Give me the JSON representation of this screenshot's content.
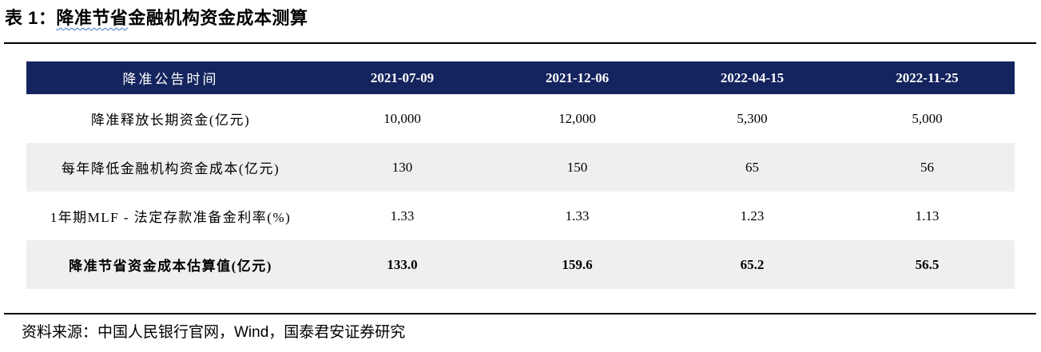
{
  "title": {
    "prefix": "表 1：",
    "underlined": "降准节省",
    "rest": "金融机构资金成本测算"
  },
  "table": {
    "header": [
      "降准公告时间",
      "2021-07-09",
      "2021-12-06",
      "2022-04-15",
      "2022-11-25"
    ],
    "rows": [
      {
        "label": "降准释放长期资金(亿元)",
        "values": [
          "10,000",
          "12,000",
          "5,300",
          "5,000"
        ]
      },
      {
        "label": "每年降低金融机构资金成本(亿元)",
        "values": [
          "130",
          "150",
          "65",
          "56"
        ]
      },
      {
        "label": "1年期MLF - 法定存款准备金利率(%)",
        "values": [
          "1.33",
          "1.33",
          "1.23",
          "1.13"
        ]
      },
      {
        "label": "降准节省资金成本估算值(亿元)",
        "values": [
          "133.0",
          "159.6",
          "65.2",
          "56.5"
        ]
      }
    ]
  },
  "footer": {
    "source": "资料来源：中国人民银行官网，Wind，国泰君安证券研究"
  },
  "colors": {
    "header_bg": "#14245e",
    "row_alt_bg": "#efefef",
    "squiggle": "#4472c4",
    "rule": "#000000"
  }
}
